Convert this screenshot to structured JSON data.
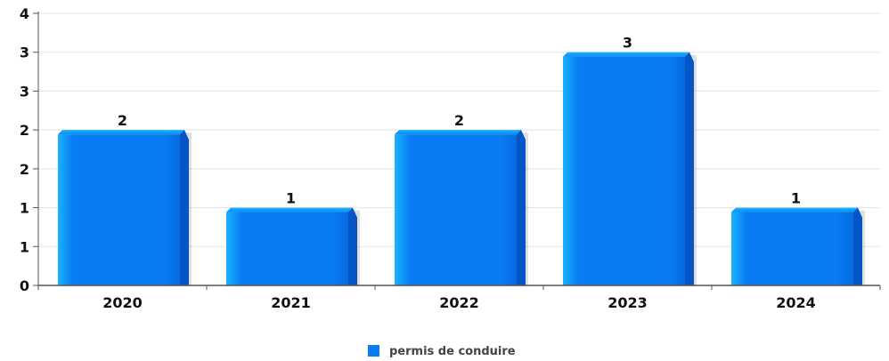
{
  "chart_data": {
    "type": "bar",
    "categories": [
      "2020",
      "2021",
      "2022",
      "2023",
      "2024"
    ],
    "series": [
      {
        "name": "permis de conduire",
        "values": [
          2,
          1,
          2,
          3,
          1
        ]
      }
    ],
    "ylim": [
      0,
      3.5
    ],
    "y_ticks": [
      {
        "value": 0,
        "label": "0"
      },
      {
        "value": 0.5,
        "label": "1"
      },
      {
        "value": 1,
        "label": "1"
      },
      {
        "value": 1.5,
        "label": "2"
      },
      {
        "value": 2,
        "label": "2"
      },
      {
        "value": 2.5,
        "label": "3"
      },
      {
        "value": 3,
        "label": "3"
      },
      {
        "value": 3.5,
        "label": "4"
      }
    ],
    "data_labels": [
      "2",
      "1",
      "2",
      "3",
      "1"
    ],
    "grid": true,
    "legend_position": "bottom-center",
    "colors": {
      "bar": "#0a7cf3",
      "bar_light": "#18b4ff",
      "bar_dark": "#0555c7",
      "grid": "#e3e3e3",
      "axis": "#555555"
    }
  }
}
